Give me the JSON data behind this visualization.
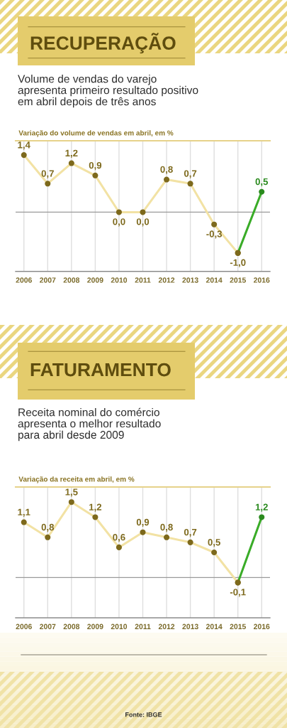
{
  "chart_data": [
    {
      "type": "line",
      "title": "RECUPERAÇÃO",
      "subtitle": "Volume de vendas do varejo\napresenta primeiro resultado positivo\nem abril depois de três anos",
      "ylabel": "Variação do volume de vendas em abril, em %",
      "categories": [
        "2006",
        "2007",
        "2008",
        "2009",
        "2010",
        "2011",
        "2012",
        "2013",
        "2014",
        "2015",
        "2016"
      ],
      "series": [
        {
          "color": "#f2e2a4",
          "colors": [
            "#7d691c",
            "#7d691c",
            "#7d691c",
            "#7d691c",
            "#7d691c",
            "#7d691c",
            "#7d691c",
            "#7d691c",
            "#7d691c",
            "#7d691c",
            null
          ],
          "values": [
            1.4,
            0.7,
            1.2,
            0.9,
            0.0,
            0.0,
            0.8,
            0.7,
            -0.3,
            -1.0,
            null
          ],
          "value_labels": [
            "1,4",
            "0,7",
            "1,2",
            "0,9",
            "0,0",
            "0,0",
            "0,8",
            "0,7",
            "-0,3",
            "-1,0",
            null
          ]
        },
        {
          "color": "#3aac28",
          "colors": [
            null,
            null,
            null,
            null,
            null,
            null,
            null,
            null,
            null,
            "#7d691c",
            "#2a8a1e"
          ],
          "values": [
            null,
            null,
            null,
            null,
            null,
            null,
            null,
            null,
            null,
            -1.0,
            0.5
          ],
          "value_labels": [
            null,
            null,
            null,
            null,
            null,
            null,
            null,
            null,
            null,
            null,
            "0,5"
          ]
        }
      ],
      "ylim": [
        -1.45,
        1.75
      ],
      "grid": "x",
      "tick_labels": "x",
      "marker": "circle",
      "line_style": "solid",
      "ref_lines": [
        {
          "axis": "y",
          "value": 0,
          "color": "#9a9a9a"
        }
      ]
    },
    {
      "type": "line",
      "title": "FATURAMENTO",
      "subtitle": "Receita nominal do comércio\napresenta o melhor resultado\npara abril desde 2009",
      "ylabel": "Variação da receita em abril, em %",
      "categories": [
        "2006",
        "2007",
        "2008",
        "2009",
        "2010",
        "2011",
        "2012",
        "2013",
        "2014",
        "2015",
        "2016"
      ],
      "series": [
        {
          "color": "#f2e2a4",
          "colors": [
            "#7d691c",
            "#7d691c",
            "#7d691c",
            "#7d691c",
            "#7d691c",
            "#7d691c",
            "#7d691c",
            "#7d691c",
            "#7d691c",
            "#7d691c",
            null
          ],
          "values": [
            1.1,
            0.8,
            1.5,
            1.2,
            0.6,
            0.9,
            0.8,
            0.7,
            0.5,
            -0.1,
            null
          ],
          "value_labels": [
            "1,1",
            "0,8",
            "1,5",
            "1,2",
            "0,6",
            "0,9",
            "0,8",
            "0,7",
            "0,5",
            "-0,1",
            null
          ]
        },
        {
          "color": "#3aac28",
          "colors": [
            null,
            null,
            null,
            null,
            null,
            null,
            null,
            null,
            null,
            "#7d691c",
            "#2a8a1e"
          ],
          "values": [
            null,
            null,
            null,
            null,
            null,
            null,
            null,
            null,
            null,
            -0.1,
            1.2
          ],
          "value_labels": [
            null,
            null,
            null,
            null,
            null,
            null,
            null,
            null,
            null,
            null,
            "1,2"
          ]
        }
      ],
      "ylim": [
        -0.8,
        1.8
      ],
      "grid": "x",
      "tick_labels": "x",
      "marker": "circle",
      "line_style": "solid",
      "ref_lines": [
        {
          "axis": "y",
          "value": 0,
          "color": "#9a9a9a"
        }
      ],
      "annotations": [
        "Fonte: IBGE"
      ]
    }
  ]
}
